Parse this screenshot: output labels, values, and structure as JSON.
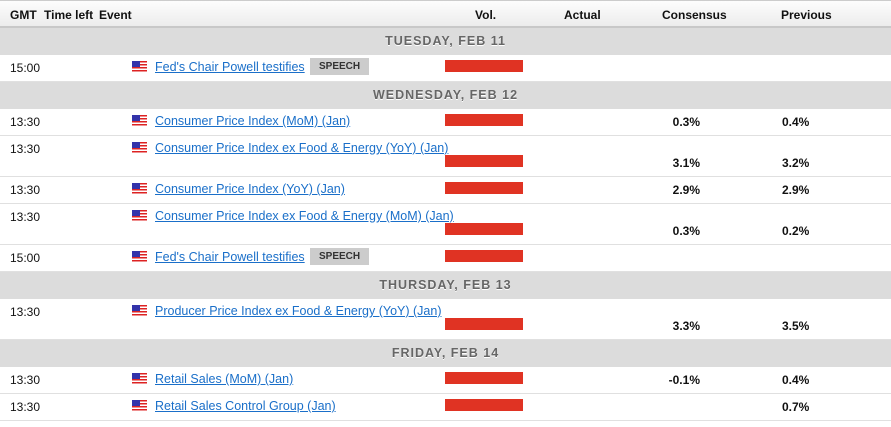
{
  "header": {
    "gmt": "GMT",
    "time_left": "Time left",
    "event": "Event",
    "vol": "Vol.",
    "actual": "Actual",
    "consensus": "Consensus",
    "previous": "Previous"
  },
  "colors": {
    "volume_bar": "#e03323",
    "link": "#1a6fc9",
    "band": "#dcdcdc"
  },
  "days": [
    {
      "label": "TUESDAY, FEB 11",
      "events": [
        {
          "time": "15:00",
          "country": "us-flag-icon",
          "name": "Fed's Chair Powell testifies",
          "badge": "SPEECH",
          "consensus": "",
          "previous": "",
          "tall": false
        }
      ]
    },
    {
      "label": "WEDNESDAY, FEB 12",
      "events": [
        {
          "time": "13:30",
          "country": "us-flag-icon",
          "name": "Consumer Price Index (MoM) (Jan)",
          "consensus": "0.3%",
          "previous": "0.4%",
          "tall": false
        },
        {
          "time": "13:30",
          "country": "us-flag-icon",
          "name": "Consumer Price Index ex Food & Energy (YoY) (Jan)",
          "consensus": "3.1%",
          "previous": "3.2%",
          "tall": true
        },
        {
          "time": "13:30",
          "country": "us-flag-icon",
          "name": "Consumer Price Index (YoY) (Jan)",
          "consensus": "2.9%",
          "previous": "2.9%",
          "tall": false
        },
        {
          "time": "13:30",
          "country": "us-flag-icon",
          "name": "Consumer Price Index ex Food & Energy (MoM) (Jan)",
          "consensus": "0.3%",
          "previous": "0.2%",
          "tall": true
        },
        {
          "time": "15:00",
          "country": "us-flag-icon",
          "name": "Fed's Chair Powell testifies",
          "badge": "SPEECH",
          "consensus": "",
          "previous": "",
          "tall": false
        }
      ]
    },
    {
      "label": "THURSDAY, FEB 13",
      "events": [
        {
          "time": "13:30",
          "country": "us-flag-icon",
          "name": "Producer Price Index ex Food & Energy (YoY) (Jan)",
          "consensus": "3.3%",
          "previous": "3.5%",
          "tall": true
        }
      ]
    },
    {
      "label": "FRIDAY, FEB 14",
      "events": [
        {
          "time": "13:30",
          "country": "us-flag-icon",
          "name": "Retail Sales (MoM) (Jan)",
          "consensus": "-0.1%",
          "previous": "0.4%",
          "tall": false
        },
        {
          "time": "13:30",
          "country": "us-flag-icon",
          "name": "Retail Sales Control Group (Jan)",
          "consensus": "",
          "previous": "0.7%",
          "tall": false
        }
      ]
    }
  ]
}
